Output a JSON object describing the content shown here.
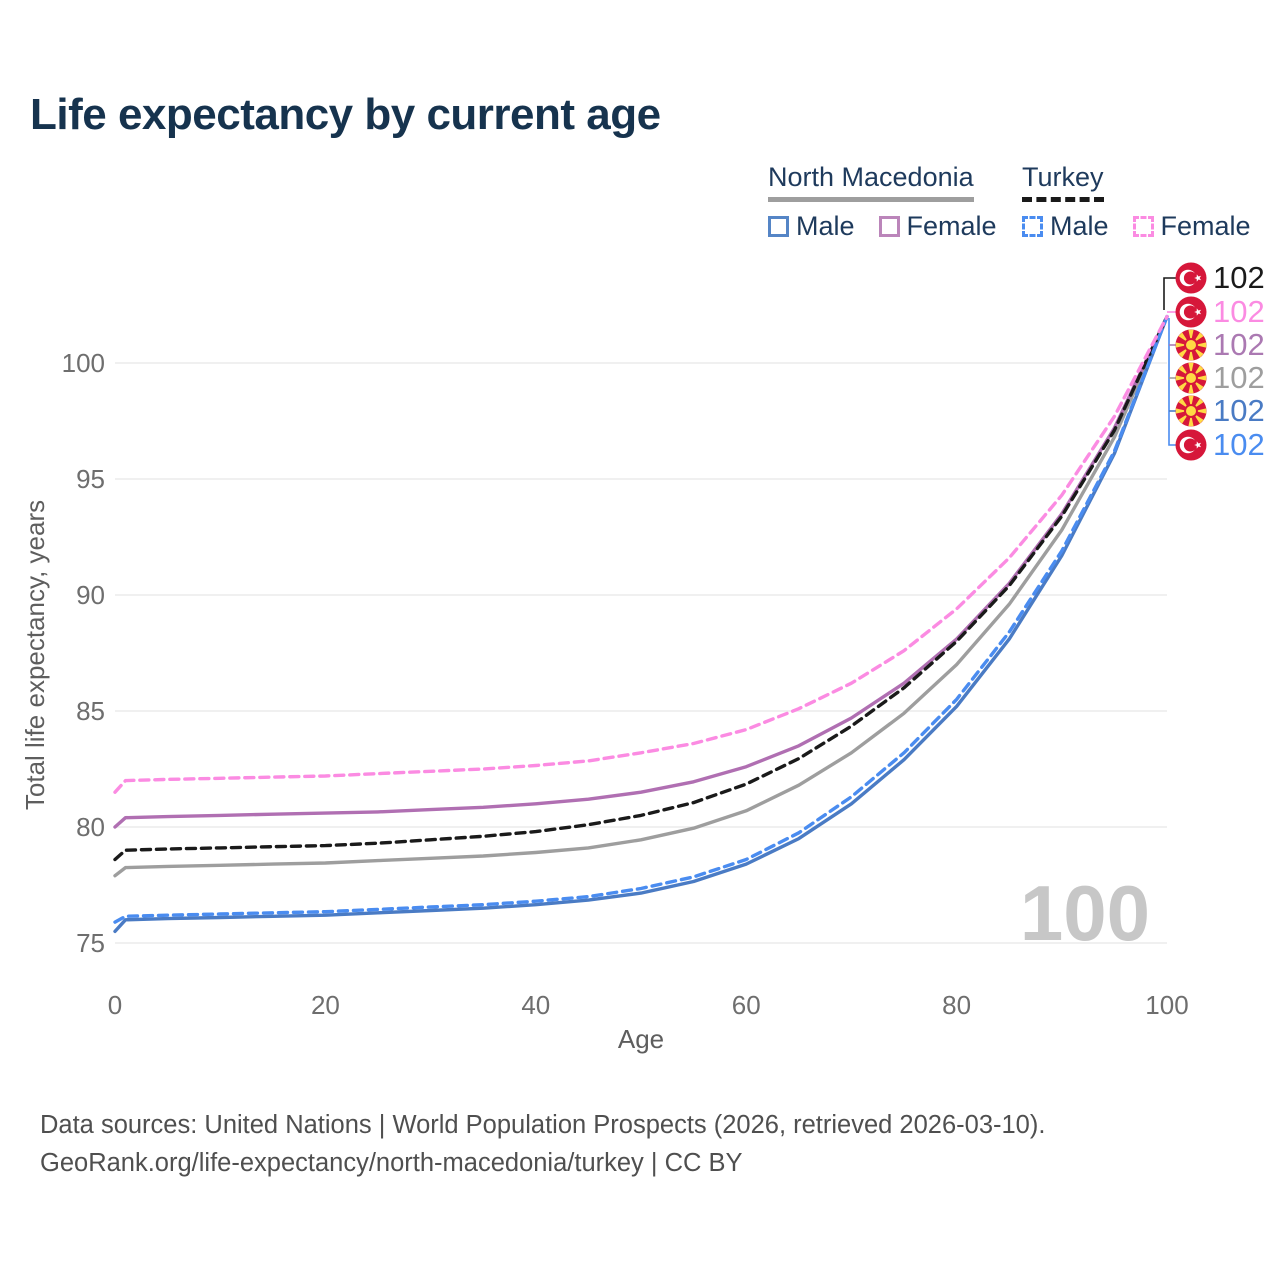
{
  "title": "Life expectancy by current age",
  "legend": {
    "groups": [
      {
        "name": "North Macedonia",
        "line_style": "solid",
        "line_color": "#9e9e9e",
        "items": [
          {
            "label": "Male",
            "color": "#5585c6",
            "dashed": false
          },
          {
            "label": "Female",
            "color": "#bb85ba",
            "dashed": false
          }
        ]
      },
      {
        "name": "Turkey",
        "line_style": "dashed",
        "line_color": "#1a1a1a",
        "items": [
          {
            "label": "Male",
            "color": "#4a8cf0",
            "dashed": true
          },
          {
            "label": "Female",
            "color": "#fb8be2",
            "dashed": true
          }
        ]
      }
    ]
  },
  "chart_data": {
    "type": "line",
    "title": "Life expectancy by current age",
    "xlabel": "Age",
    "ylabel": "Total life expectancy, years",
    "xlim": [
      0,
      100
    ],
    "ylim": [
      74.5,
      103.5
    ],
    "x_ticks": [
      0,
      20,
      40,
      60,
      80,
      100
    ],
    "y_ticks": [
      75,
      80,
      85,
      90,
      95,
      100
    ],
    "grid": "horizontal",
    "legend_position": "top-right",
    "x": [
      0,
      1,
      5,
      10,
      15,
      20,
      25,
      30,
      35,
      40,
      45,
      50,
      55,
      60,
      65,
      70,
      75,
      80,
      85,
      90,
      95,
      100
    ],
    "series": [
      {
        "id": "nm-total",
        "name": "North Macedonia — Total",
        "color": "#9e9e9e",
        "dash": false,
        "values": [
          77.9,
          78.25,
          78.3,
          78.35,
          78.4,
          78.45,
          78.55,
          78.65,
          78.75,
          78.9,
          79.1,
          79.45,
          79.95,
          80.7,
          81.8,
          83.2,
          84.9,
          87.0,
          89.6,
          92.8,
          96.8,
          102
        ]
      },
      {
        "id": "nm-female",
        "name": "North Macedonia — Female",
        "color": "#b06fb2",
        "dash": false,
        "values": [
          80.0,
          80.4,
          80.45,
          80.5,
          80.55,
          80.6,
          80.65,
          80.75,
          80.85,
          81.0,
          81.2,
          81.5,
          81.95,
          82.6,
          83.5,
          84.7,
          86.2,
          88.1,
          90.5,
          93.5,
          97.2,
          102
        ]
      },
      {
        "id": "nm-male",
        "name": "North Macedonia — Male",
        "color": "#4a7bc4",
        "dash": false,
        "values": [
          75.5,
          76.0,
          76.05,
          76.1,
          76.15,
          76.2,
          76.3,
          76.4,
          76.5,
          76.65,
          76.85,
          77.15,
          77.65,
          78.4,
          79.5,
          81.0,
          82.9,
          85.2,
          88.1,
          91.7,
          96.1,
          102
        ]
      },
      {
        "id": "turkey-total",
        "name": "Turkey — Total",
        "color": "#1a1a1a",
        "dash": true,
        "values": [
          78.6,
          79.0,
          79.05,
          79.1,
          79.15,
          79.2,
          79.3,
          79.45,
          79.6,
          79.8,
          80.1,
          80.5,
          81.05,
          81.85,
          82.95,
          84.35,
          86.0,
          88.0,
          90.4,
          93.4,
          97.1,
          102
        ]
      },
      {
        "id": "turkey-male",
        "name": "Turkey — Male",
        "color": "#4a8cf0",
        "dash": true,
        "values": [
          75.9,
          76.15,
          76.2,
          76.25,
          76.3,
          76.35,
          76.45,
          76.55,
          76.65,
          76.8,
          77.0,
          77.35,
          77.85,
          78.6,
          79.75,
          81.3,
          83.2,
          85.5,
          88.4,
          91.9,
          96.2,
          102
        ]
      },
      {
        "id": "turkey-female",
        "name": "Turkey — Female",
        "color": "#fb8be2",
        "dash": true,
        "values": [
          81.5,
          82.0,
          82.05,
          82.1,
          82.15,
          82.2,
          82.3,
          82.4,
          82.5,
          82.65,
          82.85,
          83.2,
          83.6,
          84.2,
          85.1,
          86.2,
          87.6,
          89.4,
          91.6,
          94.3,
          97.7,
          102
        ]
      }
    ],
    "end_labels": [
      {
        "series": "turkey-total",
        "flag": "turkey",
        "value": "102",
        "color": "#1a1a1a"
      },
      {
        "series": "turkey-female",
        "flag": "turkey",
        "value": "102",
        "color": "#fb8be2"
      },
      {
        "series": "nm-female",
        "flag": "north-macedonia",
        "value": "102",
        "color": "#ab79b2"
      },
      {
        "series": "nm-total",
        "flag": "north-macedonia",
        "value": "102",
        "color": "#9e9e9e"
      },
      {
        "series": "nm-male",
        "flag": "north-macedonia",
        "value": "102",
        "color": "#4a7bc4"
      },
      {
        "series": "turkey-male",
        "flag": "turkey",
        "value": "102",
        "color": "#4a8cf0"
      }
    ],
    "annotation": "100",
    "flag_colors": {
      "red": "#d6173a",
      "yellow": "#ffda44",
      "white": "#ffffff"
    }
  },
  "footer": {
    "line1": "Data sources: United Nations | World Population Prospects (2026, retrieved 2026-03-10).",
    "line2": "GeoRank.org/life-expectancy/north-macedonia/turkey | CC BY"
  }
}
